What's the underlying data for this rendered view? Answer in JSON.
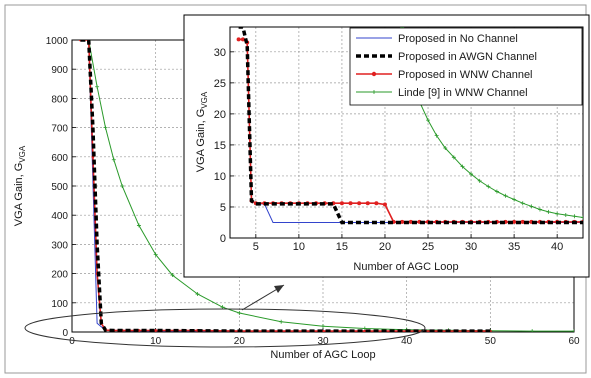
{
  "chart_data": [
    {
      "type": "line",
      "xlabel": "Number of AGC Loop",
      "ylabel": "VGA Gain, G",
      "ylabel_sub": "VGA",
      "xlim": [
        0,
        60
      ],
      "ylim": [
        0,
        1000
      ],
      "xticks": [
        0,
        10,
        20,
        30,
        40,
        50,
        60
      ],
      "yticks": [
        0,
        100,
        200,
        300,
        400,
        500,
        600,
        700,
        800,
        900,
        1000
      ],
      "grid": true,
      "series": [
        {
          "color": "#3344cc",
          "style": "solid",
          "x": [
            1,
            2,
            3,
            4,
            5,
            6,
            8,
            10,
            20,
            30,
            40,
            50
          ],
          "y": [
            1000,
            1000,
            30,
            6,
            5,
            4,
            3,
            3,
            3,
            3,
            3,
            3
          ]
        },
        {
          "color": "#000000",
          "style": "dashed",
          "x": [
            1,
            2,
            2.5,
            3,
            3.5,
            4,
            5,
            6,
            10,
            20,
            30,
            40,
            50
          ],
          "y": [
            1000,
            1000,
            700,
            300,
            30,
            6,
            5,
            5,
            5,
            3,
            3,
            3,
            3
          ]
        },
        {
          "color": "#e02020",
          "style": "dots",
          "x": [
            1,
            2,
            2.5,
            3,
            3.5,
            4,
            5,
            6,
            8,
            10,
            15,
            20,
            25,
            30,
            35,
            40,
            45,
            50
          ],
          "y": [
            1000,
            1000,
            600,
            200,
            30,
            6,
            5,
            5,
            5,
            5,
            5,
            3,
            3,
            3,
            3,
            3,
            3,
            3
          ]
        },
        {
          "color": "#2a9a2a",
          "style": "plus",
          "x": [
            2,
            3,
            4,
            5,
            6,
            8,
            10,
            12,
            15,
            18,
            20,
            25,
            30,
            35,
            40,
            45,
            50,
            55,
            60
          ],
          "y": [
            1000,
            840,
            700,
            590,
            500,
            365,
            265,
            195,
            130,
            85,
            65,
            35,
            20,
            12,
            8,
            6,
            4,
            3,
            3
          ]
        }
      ],
      "annotation": "ellipse marking the low-gain region, arrow pointing to inset"
    },
    {
      "type": "line",
      "role": "inset",
      "xlabel": "Number of AGC Loop",
      "ylabel": "VGA Gain, G",
      "ylabel_sub": "VGA",
      "xlim": [
        2,
        43
      ],
      "ylim": [
        0,
        34
      ],
      "xticks": [
        5,
        10,
        15,
        20,
        25,
        30,
        35,
        40
      ],
      "yticks": [
        0,
        5,
        10,
        15,
        20,
        25,
        30
      ],
      "grid": true,
      "legend_position": "top-right",
      "series": [
        {
          "name": "Proposed in No Channel",
          "color": "#3344cc",
          "style": "solid",
          "x": [
            3,
            3.5,
            4,
            4.5,
            5,
            6,
            7,
            10,
            14.5,
            15,
            20,
            25,
            30,
            35,
            40,
            43
          ],
          "y": [
            32,
            32,
            31.5,
            6,
            5.5,
            5.5,
            2.5,
            2.5,
            2.5,
            2.5,
            2.5,
            2.5,
            2.5,
            2.5,
            2.5,
            2.5
          ]
        },
        {
          "name": "Proposed in AWGN Channel",
          "color": "#000000",
          "style": "dashed",
          "x": [
            3,
            3.5,
            4,
            4.5,
            5,
            6,
            8,
            10,
            12,
            14,
            14.5,
            15,
            20,
            25,
            30,
            35,
            40,
            43
          ],
          "y": [
            34,
            34,
            31,
            6,
            5.5,
            5.5,
            5.5,
            5.5,
            5.5,
            5.5,
            4,
            2.5,
            2.5,
            2.5,
            2.5,
            2.5,
            2.5,
            2.5
          ]
        },
        {
          "name": "Proposed in WNW Channel",
          "color": "#e02020",
          "style": "dots",
          "x": [
            3,
            3.5,
            4,
            4.5,
            5,
            6,
            7,
            8,
            9,
            10,
            11,
            12,
            13,
            14,
            15,
            16,
            17,
            18,
            19,
            20,
            21,
            22,
            23,
            24,
            25,
            26,
            27,
            28,
            29,
            30,
            31,
            32,
            33,
            34,
            35,
            36,
            37,
            38,
            39,
            40,
            41,
            42,
            43
          ],
          "y": [
            32,
            32,
            31.5,
            6,
            5.6,
            5.6,
            5.6,
            5.6,
            5.6,
            5.6,
            5.6,
            5.6,
            5.6,
            5.6,
            5.6,
            5.6,
            5.6,
            5.6,
            5.6,
            5.4,
            2.6,
            2.6,
            2.6,
            2.6,
            2.6,
            2.6,
            2.6,
            2.6,
            2.6,
            2.6,
            2.6,
            2.6,
            2.6,
            2.6,
            2.6,
            2.6,
            2.6,
            2.6,
            2.6,
            2.6,
            2.6,
            2.6,
            2.6
          ]
        },
        {
          "name": "Linde [9] in WNW Channel",
          "color": "#2a9a2a",
          "style": "plus",
          "x": [
            22,
            23,
            24,
            25,
            26,
            27,
            28,
            29,
            30,
            31,
            32,
            33,
            34,
            35,
            36,
            37,
            38,
            39,
            40,
            41,
            42,
            43
          ],
          "y": [
            34,
            26,
            22,
            19,
            16.5,
            14.5,
            13,
            11.5,
            10.3,
            9.2,
            8.3,
            7.5,
            6.8,
            6.2,
            5.6,
            5.1,
            4.6,
            4.2,
            3.9,
            3.7,
            3.5,
            3.3
          ]
        }
      ]
    }
  ]
}
